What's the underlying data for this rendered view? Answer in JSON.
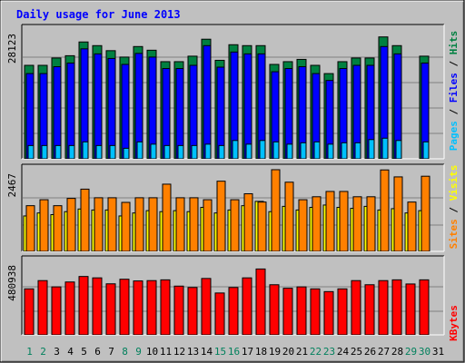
{
  "title": "Daily usage for June 2013",
  "colors": {
    "background": "#c0c0c0",
    "title": "#0000ff",
    "hits": "#008040",
    "files": "#0000ff",
    "pages": "#00c0ff",
    "visits": "#ffff00",
    "sites": "#ff8000",
    "kbytes": "#ff0000",
    "weekend_day": "#00805c",
    "weekday": "#000000"
  },
  "chart_data": [
    {
      "type": "bar",
      "panel": "hits-files-pages",
      "y_max_label": "28123",
      "ylim": [
        0,
        28123
      ],
      "side_label": [
        "Pages",
        "Files",
        "Hits"
      ],
      "categories": [
        "1",
        "2",
        "3",
        "4",
        "5",
        "6",
        "7",
        "8",
        "9",
        "10",
        "11",
        "12",
        "13",
        "14",
        "15",
        "16",
        "17",
        "18",
        "19",
        "20",
        "21",
        "22",
        "23",
        "24",
        "25",
        "26",
        "27",
        "28",
        "29",
        "30",
        "31"
      ],
      "weekend_days": [
        "1",
        "2",
        "8",
        "9",
        "15",
        "16",
        "22",
        "23",
        "29",
        "30"
      ],
      "series": [
        {
          "name": "Hits",
          "values": [
            20400,
            20400,
            22000,
            22500,
            25500,
            24700,
            23600,
            22200,
            24500,
            23700,
            21200,
            21200,
            22400,
            26100,
            21500,
            24900,
            24700,
            24700,
            20600,
            21200,
            21700,
            20400,
            18600,
            21200,
            22000,
            22000,
            26600,
            24700,
            null,
            22400,
            null
          ]
        },
        {
          "name": "Files",
          "values": [
            18600,
            18600,
            20100,
            20900,
            24000,
            22900,
            21900,
            20600,
            23000,
            22200,
            19700,
            19700,
            20400,
            24700,
            20000,
            23300,
            22900,
            22900,
            19000,
            19700,
            20100,
            18600,
            17100,
            19700,
            20400,
            20400,
            24500,
            22900,
            null,
            20900,
            null
          ]
        },
        {
          "name": "Pages",
          "values": [
            2900,
            2900,
            2900,
            2900,
            3700,
            2900,
            2900,
            2300,
            3700,
            3200,
            2900,
            2900,
            2900,
            3200,
            2900,
            4000,
            3200,
            4000,
            3700,
            3200,
            3500,
            3700,
            3200,
            3500,
            3500,
            4200,
            4500,
            4000,
            null,
            3700,
            null
          ]
        }
      ]
    },
    {
      "type": "bar",
      "panel": "visits-sites",
      "y_max_label": "2467",
      "ylim": [
        0,
        2467
      ],
      "side_label": [
        "Sites",
        "Visits"
      ],
      "categories": [
        "1",
        "2",
        "3",
        "4",
        "5",
        "6",
        "7",
        "8",
        "9",
        "10",
        "11",
        "12",
        "13",
        "14",
        "15",
        "16",
        "17",
        "18",
        "19",
        "20",
        "21",
        "22",
        "23",
        "24",
        "25",
        "26",
        "27",
        "28",
        "29",
        "30",
        "31"
      ],
      "series": [
        {
          "name": "Visits",
          "values": [
            1070,
            1160,
            1110,
            1200,
            1280,
            1250,
            1250,
            1070,
            1160,
            1230,
            1200,
            1230,
            1200,
            1330,
            1160,
            1250,
            1380,
            1510,
            1200,
            1360,
            1250,
            1330,
            1400,
            1330,
            1300,
            1360,
            1250,
            1290,
            1160,
            1230,
            null
          ]
        },
        {
          "name": "Sites",
          "values": [
            1380,
            1560,
            1380,
            1600,
            1880,
            1620,
            1620,
            1480,
            1620,
            1620,
            2030,
            1620,
            1620,
            1560,
            2120,
            1560,
            1740,
            1490,
            2467,
            2090,
            1560,
            1650,
            1810,
            1810,
            1650,
            1650,
            2460,
            2250,
            1490,
            2270,
            null
          ]
        }
      ]
    },
    {
      "type": "bar",
      "panel": "kbytes",
      "y_max_label": "480938",
      "ylim": [
        0,
        480938
      ],
      "side_label": [
        "KBytes"
      ],
      "categories": [
        "1",
        "2",
        "3",
        "4",
        "5",
        "6",
        "7",
        "8",
        "9",
        "10",
        "11",
        "12",
        "13",
        "14",
        "15",
        "16",
        "17",
        "18",
        "19",
        "20",
        "21",
        "22",
        "23",
        "24",
        "25",
        "26",
        "27",
        "28",
        "29",
        "30",
        "31"
      ],
      "series": [
        {
          "name": "KBytes",
          "values": [
            301000,
            355000,
            314000,
            346000,
            382000,
            373000,
            334000,
            364000,
            353000,
            355000,
            360000,
            319000,
            310000,
            369000,
            274000,
            310000,
            373000,
            431000,
            328000,
            305000,
            314000,
            301000,
            283000,
            301000,
            355000,
            328000,
            355000,
            360000,
            333000,
            360000,
            null
          ]
        }
      ]
    }
  ]
}
